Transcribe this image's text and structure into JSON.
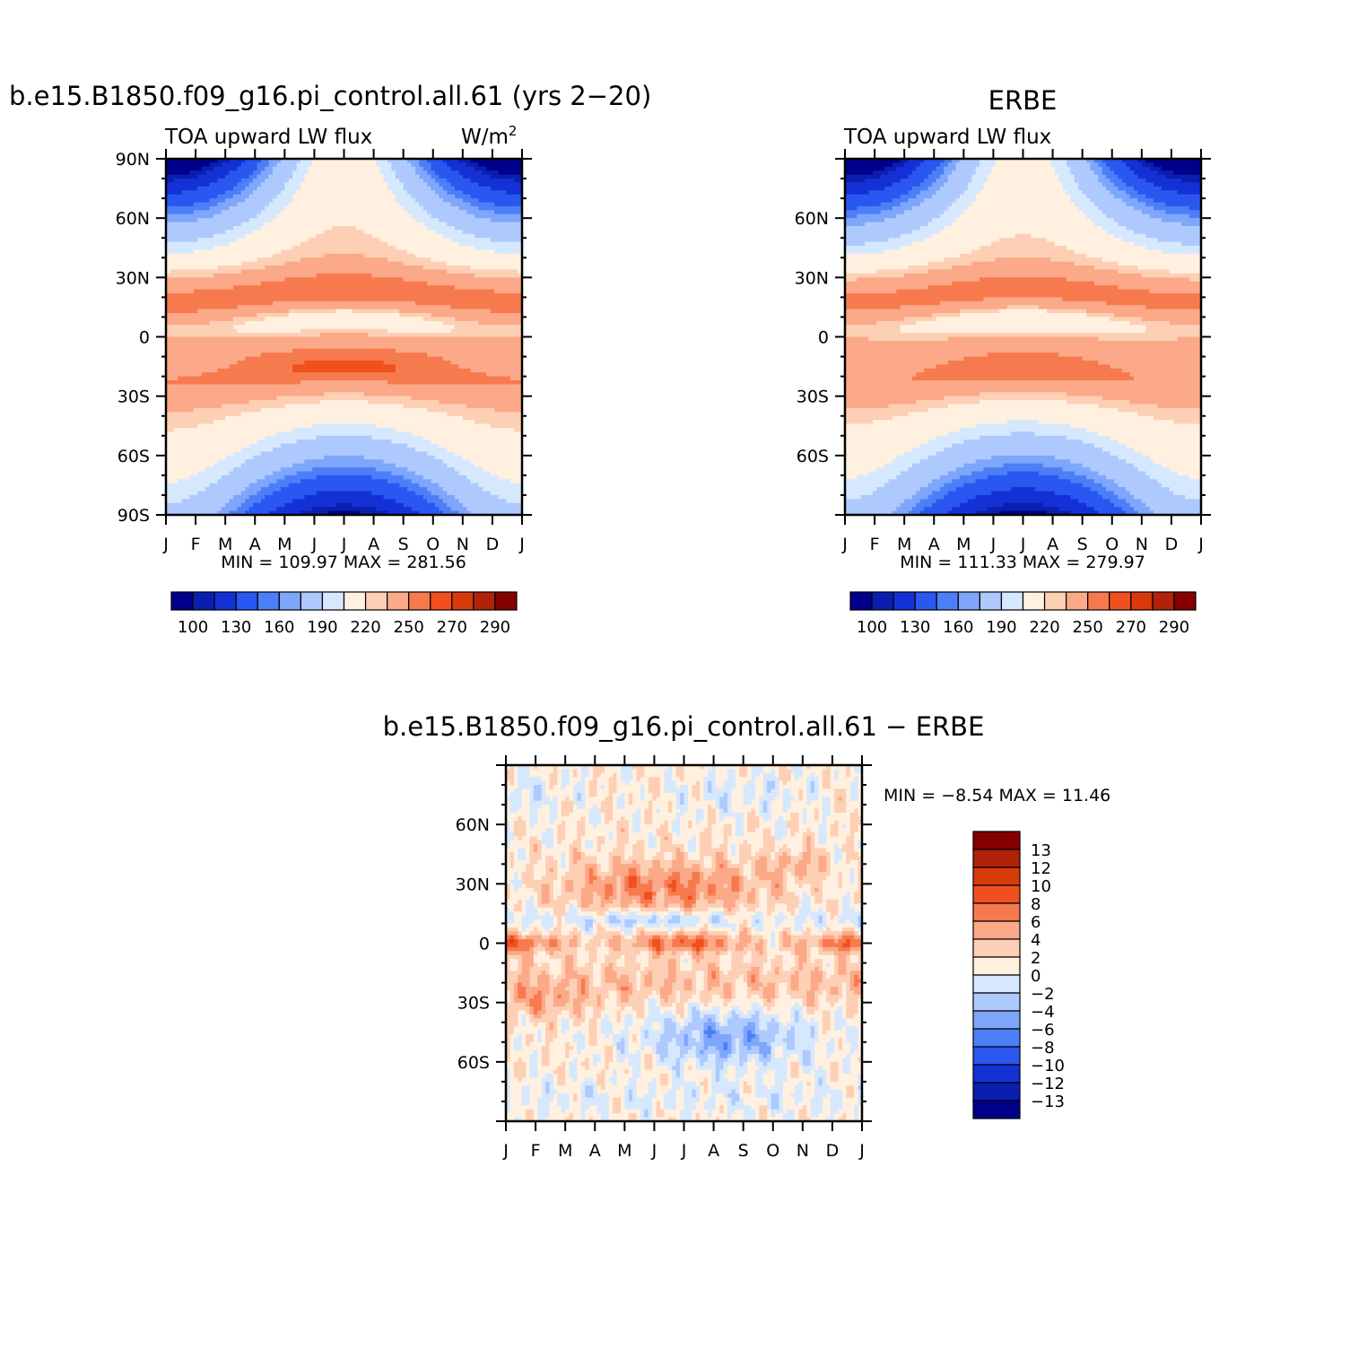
{
  "colors": {
    "scale": [
      "#00008b",
      "#0a1fb0",
      "#1431d6",
      "#2a57f0",
      "#4c7ff7",
      "#7ea6fb",
      "#aec9fd",
      "#d6e8fd",
      "#fff0e0",
      "#fdcfb4",
      "#fba988",
      "#f77a4f",
      "#f0501e",
      "#d83a0a",
      "#b22208",
      "#850000"
    ]
  },
  "panels": {
    "model": {
      "title": "b.e15.B1850.f09_g16.pi_control.all.61 (yrs 2−20)",
      "left_label": "TOA upward LW flux",
      "units_base": "W/m",
      "units_sup": "2",
      "min_max": "MIN = 109.97 MAX = 281.56"
    },
    "obs": {
      "title": "ERBE",
      "left_label": "TOA upward LW flux",
      "min_max": "MIN = 111.33 MAX = 279.97"
    },
    "diff": {
      "title": "b.e15.B1850.f09_g16.pi_control.all.61 − ERBE",
      "min_max": "MIN = −8.54 MAX = 11.46"
    }
  },
  "chart_data": [
    {
      "type": "heatmap",
      "name": "model",
      "x": [
        "J",
        "F",
        "M",
        "A",
        "M",
        "J",
        "J",
        "A",
        "S",
        "O",
        "N",
        "D",
        "J"
      ],
      "y_ticks": [
        "90N",
        "60N",
        "30N",
        "0",
        "30S",
        "60S",
        "90S"
      ],
      "y_tick_lat": [
        90,
        60,
        30,
        0,
        -30,
        -60,
        -90
      ],
      "ylim": [
        -90,
        90
      ],
      "levels": [
        100,
        110,
        130,
        150,
        160,
        170,
        190,
        200,
        220,
        230,
        250,
        260,
        270,
        280,
        290
      ],
      "colorbar_labels": [
        "100",
        "130",
        "160",
        "190",
        "220",
        "250",
        "270",
        "290"
      ],
      "min": 109.97,
      "max": 281.56
    },
    {
      "type": "heatmap",
      "name": "obs",
      "x": [
        "J",
        "F",
        "M",
        "A",
        "M",
        "J",
        "J",
        "A",
        "S",
        "O",
        "N",
        "D",
        "J"
      ],
      "y_ticks": [
        "60N",
        "30N",
        "0",
        "30S",
        "60S"
      ],
      "y_tick_lat": [
        60,
        30,
        0,
        -30,
        -60
      ],
      "ylim": [
        -90,
        90
      ],
      "levels": [
        100,
        110,
        130,
        150,
        160,
        170,
        190,
        200,
        220,
        230,
        250,
        260,
        270,
        280,
        290
      ],
      "colorbar_labels": [
        "100",
        "130",
        "160",
        "190",
        "220",
        "250",
        "270",
        "290"
      ],
      "min": 111.33,
      "max": 279.97
    },
    {
      "type": "heatmap",
      "name": "difference",
      "x": [
        "J",
        "F",
        "M",
        "A",
        "M",
        "J",
        "J",
        "A",
        "S",
        "O",
        "N",
        "D",
        "J"
      ],
      "y_ticks": [
        "60N",
        "30N",
        "0",
        "30S",
        "60S"
      ],
      "y_tick_lat": [
        60,
        30,
        0,
        -30,
        -60
      ],
      "ylim": [
        -90,
        90
      ],
      "levels": [
        -13,
        -12,
        -10,
        -8,
        -6,
        -4,
        -2,
        0,
        2,
        4,
        6,
        8,
        10,
        12,
        13
      ],
      "colorbar_labels": [
        "13",
        "12",
        "10",
        "8",
        "6",
        "4",
        "2",
        "0",
        "−2",
        "−4",
        "−6",
        "−8",
        "−10",
        "−12",
        "−13"
      ],
      "min": -8.54,
      "max": 11.46
    }
  ]
}
